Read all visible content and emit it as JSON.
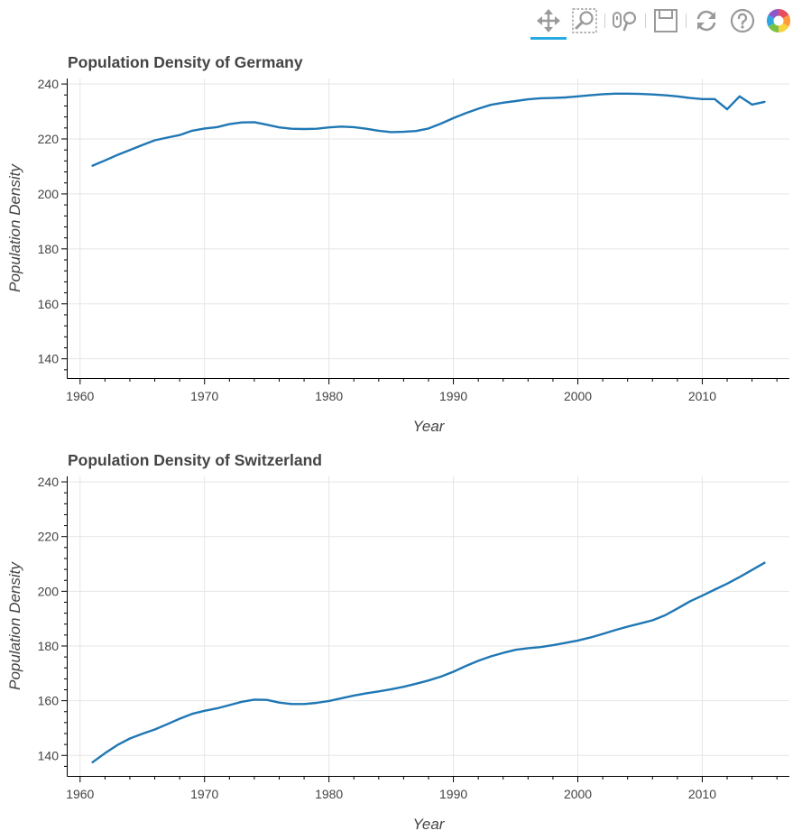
{
  "toolbar": {
    "tools": [
      {
        "name": "pan-tool",
        "icon": "pan-icon",
        "active": true
      },
      {
        "name": "box-zoom-tool",
        "icon": "box-zoom-icon",
        "active": false
      },
      {
        "name": "wheel-zoom-tool",
        "icon": "wheel-zoom-icon",
        "active": false
      },
      {
        "name": "save-tool",
        "icon": "save-icon",
        "active": false
      },
      {
        "name": "reset-tool",
        "icon": "reset-icon",
        "active": false
      },
      {
        "name": "help-tool",
        "icon": "help-icon",
        "active": false
      },
      {
        "name": "bokeh-logo",
        "icon": "bokeh-logo-icon",
        "active": false
      }
    ],
    "active_color": "#26aae1"
  },
  "chart_data": [
    {
      "type": "line",
      "title": "Population Density of Germany",
      "xlabel": "Year",
      "ylabel": "Population Density",
      "xlim": [
        1959,
        2017
      ],
      "ylim": [
        133,
        242
      ],
      "xticks": [
        1960,
        1970,
        1980,
        1990,
        2000,
        2010
      ],
      "yticks": [
        140,
        160,
        180,
        200,
        220,
        240
      ],
      "grid": true,
      "line_color": "#1f77b4",
      "series": [
        {
          "x": [
            1961,
            1962,
            1963,
            1964,
            1965,
            1966,
            1967,
            1968,
            1969,
            1970,
            1971,
            1972,
            1973,
            1974,
            1975,
            1976,
            1977,
            1978,
            1979,
            1980,
            1981,
            1982,
            1983,
            1984,
            1985,
            1986,
            1987,
            1988,
            1989,
            1990,
            1991,
            1992,
            1993,
            1994,
            1995,
            1996,
            1997,
            1998,
            1999,
            2000,
            2001,
            2002,
            2003,
            2004,
            2005,
            2006,
            2007,
            2008,
            2009,
            2010,
            2011,
            2012,
            2013,
            2014,
            2015
          ],
          "y": [
            210.3,
            212.2,
            214.2,
            216.0,
            217.8,
            219.5,
            220.5,
            221.4,
            223.0,
            223.8,
            224.3,
            225.4,
            226.0,
            226.1,
            225.2,
            224.2,
            223.7,
            223.6,
            223.7,
            224.2,
            224.5,
            224.3,
            223.7,
            223.0,
            222.5,
            222.6,
            222.9,
            223.8,
            225.6,
            227.6,
            229.4,
            231.0,
            232.4,
            233.2,
            233.8,
            234.4,
            234.8,
            234.9,
            235.1,
            235.5,
            235.9,
            236.3,
            236.5,
            236.5,
            236.4,
            236.2,
            235.9,
            235.5,
            234.9,
            234.5,
            234.5,
            230.8,
            235.5,
            232.5,
            233.5
          ]
        }
      ]
    },
    {
      "type": "line",
      "title": "Population Density of Switzerland",
      "xlabel": "Year",
      "ylabel": "Population Density",
      "xlim": [
        1959,
        2017
      ],
      "ylim": [
        132.5,
        242
      ],
      "xticks": [
        1960,
        1970,
        1980,
        1990,
        2000,
        2010
      ],
      "yticks": [
        140,
        160,
        180,
        200,
        220,
        240
      ],
      "grid": true,
      "line_color": "#1f77b4",
      "series": [
        {
          "x": [
            1961,
            1962,
            1963,
            1964,
            1965,
            1966,
            1967,
            1968,
            1969,
            1970,
            1971,
            1972,
            1973,
            1974,
            1975,
            1976,
            1977,
            1978,
            1979,
            1980,
            1981,
            1982,
            1983,
            1984,
            1985,
            1986,
            1987,
            1988,
            1989,
            1990,
            1991,
            1992,
            1993,
            1994,
            1995,
            1996,
            1997,
            1998,
            1999,
            2000,
            2001,
            2002,
            2003,
            2004,
            2005,
            2006,
            2007,
            2008,
            2009,
            2010,
            2011,
            2012,
            2013,
            2014,
            2015
          ],
          "y": [
            137.5,
            140.8,
            143.8,
            146.2,
            147.9,
            149.5,
            151.4,
            153.4,
            155.2,
            156.3,
            157.2,
            158.4,
            159.6,
            160.4,
            160.3,
            159.3,
            158.8,
            158.8,
            159.2,
            159.9,
            160.9,
            161.9,
            162.7,
            163.4,
            164.2,
            165.1,
            166.2,
            167.4,
            168.8,
            170.6,
            172.7,
            174.6,
            176.2,
            177.5,
            178.6,
            179.2,
            179.6,
            180.3,
            181.1,
            182.0,
            183.1,
            184.4,
            185.8,
            187.1,
            188.2,
            189.4,
            191.2,
            193.7,
            196.3,
            198.4,
            200.6,
            202.8,
            205.2,
            207.8,
            210.4
          ]
        }
      ]
    }
  ]
}
